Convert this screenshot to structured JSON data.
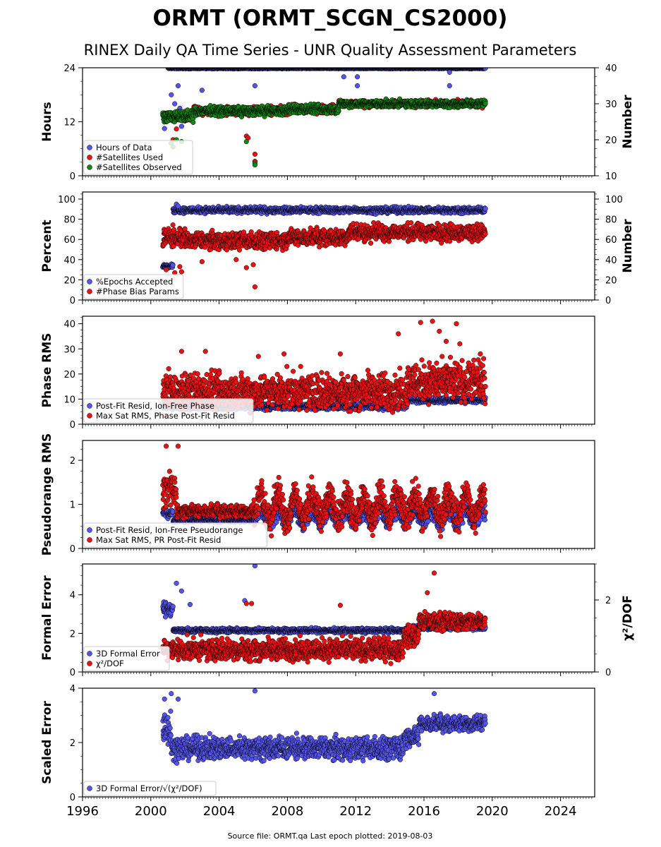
{
  "title": "ORMT (ORMT_SCGN_CS2000)",
  "subtitle": "RINEX Daily QA Time Series - UNR Quality Assessment Parameters",
  "footer": "Source file: ORMT.qa Last epoch plotted: 2019-08-03",
  "colors": {
    "blue": "#5555ee",
    "red": "#ee1111",
    "green": "#118811",
    "navy": "#1a1a5e",
    "edge": "#000000"
  },
  "chart_data": [
    {
      "type": "scatter",
      "panel": "hours-satellites",
      "xlim": [
        1996,
        2026
      ],
      "x_ticks": [
        "1996",
        "2000",
        "2004",
        "2008",
        "2012",
        "2016",
        "2020",
        "2024"
      ],
      "ylabel": "Hours",
      "ylim": [
        0,
        24
      ],
      "y_ticks": [
        "0",
        "12",
        "24"
      ],
      "ylabel_right": "Number",
      "ylim_right": [
        10,
        40
      ],
      "y_ticks_right": [
        "10",
        "20",
        "30",
        "40"
      ],
      "legend_position": "bottom-left",
      "series": [
        {
          "name": "Hours of Data",
          "axis": "left",
          "color": "blue",
          "segments": [
            [
              2001.0,
              2019.6,
              23.9,
              0.1
            ]
          ],
          "outliers": [
            [
              2000.8,
              10.5
            ],
            [
              2000.9,
              12.0
            ],
            [
              2001.2,
              18.0
            ],
            [
              2001.4,
              16.0
            ],
            [
              2001.6,
              20.0
            ],
            [
              2001.7,
              15.0
            ],
            [
              2001.8,
              11.0
            ],
            [
              2003.0,
              19.0
            ],
            [
              2006.1,
              20.0
            ],
            [
              2006.1,
              3.2
            ],
            [
              2011.3,
              22.0
            ],
            [
              2012.1,
              22.0
            ],
            [
              2012.1,
              20.0
            ],
            [
              2017.5,
              23.0
            ],
            [
              2017.5,
              20.0
            ]
          ]
        },
        {
          "name": "#Satellites Used",
          "axis": "right",
          "color": "red",
          "segments": [
            [
              2000.7,
              2002.5,
              26.5,
              1.0
            ],
            [
              2002.5,
              2008.0,
              28.0,
              1.0
            ],
            [
              2008.0,
              2011.0,
              28.5,
              1.0
            ],
            [
              2011.0,
              2019.6,
              30.0,
              0.8
            ]
          ],
          "outliers": [
            [
              2005.6,
              21.0
            ],
            [
              2005.7,
              20.5
            ],
            [
              2006.1,
              16.0
            ],
            [
              2006.1,
              14.0
            ],
            [
              2001.3,
              20.0
            ],
            [
              2001.5,
              23.0
            ]
          ]
        },
        {
          "name": "#Satellites Observed",
          "axis": "right",
          "color": "green",
          "segments": [
            [
              2000.7,
              2002.5,
              26.5,
              1.2
            ],
            [
              2002.5,
              2008.0,
              28.0,
              1.0
            ],
            [
              2008.0,
              2011.0,
              28.5,
              1.0
            ],
            [
              2011.0,
              2019.6,
              30.0,
              0.8
            ]
          ],
          "outliers": [
            [
              2001.2,
              19.0
            ],
            [
              2001.3,
              18.0
            ],
            [
              2001.5,
              20.0
            ],
            [
              2001.8,
              19.5
            ],
            [
              2005.6,
              19.5
            ],
            [
              2006.1,
              13.5
            ],
            [
              2006.1,
              13.0
            ]
          ]
        }
      ]
    },
    {
      "type": "scatter",
      "panel": "percent-phase-bias",
      "ylabel": "Percent",
      "ylim": [
        0,
        107
      ],
      "y_ticks": [
        "0",
        "20",
        "40",
        "60",
        "80",
        "100"
      ],
      "ylabel_right": "Number",
      "ylim_right": [
        0,
        107
      ],
      "y_ticks_right": [
        "0",
        "20",
        "40",
        "60",
        "80",
        "100"
      ],
      "legend_position": "bottom-left",
      "series": [
        {
          "name": "%Epochs Accepted",
          "axis": "left",
          "color": "blue",
          "segments": [
            [
              2000.7,
              2001.3,
              34.0,
              1.5
            ],
            [
              2001.3,
              2019.6,
              89.0,
              2.5
            ]
          ],
          "outliers": [
            [
              2001.5,
              95.0
            ],
            [
              2001.6,
              93.0
            ]
          ]
        },
        {
          "name": "#Phase Bias Params",
          "axis": "left",
          "color": "red",
          "segments": [
            [
              2000.7,
              2002.0,
              62.0,
              8.0
            ],
            [
              2002.0,
              2008.0,
              59.0,
              7.0
            ],
            [
              2008.0,
              2011.5,
              62.0,
              7.0
            ],
            [
              2011.5,
              2019.6,
              67.0,
              7.0
            ]
          ],
          "outliers": [
            [
              2000.9,
              30.0
            ],
            [
              2001.4,
              27.0
            ],
            [
              2001.7,
              33.0
            ],
            [
              2001.8,
              28.0
            ],
            [
              2003.0,
              38.0
            ],
            [
              2005.0,
              40.0
            ],
            [
              2005.6,
              32.0
            ],
            [
              2006.1,
              13.0
            ],
            [
              2006.0,
              35.0
            ]
          ]
        }
      ]
    },
    {
      "type": "scatter",
      "panel": "phase-rms",
      "ylabel": "Phase RMS",
      "ylim": [
        0,
        43
      ],
      "y_ticks": [
        "0",
        "10",
        "20",
        "30",
        "40"
      ],
      "legend_position": "bottom-left",
      "series": [
        {
          "name": "Post-Fit Resid, Ion-Free Phase",
          "color": "blue",
          "segments": [
            [
              2000.7,
              2015.0,
              7.0,
              1.0
            ],
            [
              2015.0,
              2019.6,
              9.5,
              0.8
            ]
          ]
        },
        {
          "name": "Max Sat RMS, Phase Post-Fit Resid",
          "color": "red",
          "segments": [
            [
              2000.7,
              2015.0,
              13.0,
              6.0
            ],
            [
              2015.0,
              2019.6,
              17.0,
              6.5
            ]
          ],
          "outliers": [
            [
              2001.8,
              29.0
            ],
            [
              2003.2,
              29.0
            ],
            [
              2006.3,
              27.0
            ],
            [
              2007.8,
              28.0
            ],
            [
              2011.1,
              28.0
            ],
            [
              2014.5,
              36.0
            ],
            [
              2015.8,
              40.5
            ],
            [
              2016.5,
              41.0
            ],
            [
              2016.9,
              37.0
            ],
            [
              2017.3,
              33.0
            ],
            [
              2017.9,
              40.0
            ],
            [
              2018.1,
              32.0
            ],
            [
              2019.3,
              28.0
            ]
          ]
        }
      ]
    },
    {
      "type": "scatter",
      "panel": "pseudorange-rms",
      "ylabel": "Pseudorange RMS",
      "ylim": [
        0,
        2.45
      ],
      "y_ticks": [
        "0",
        "1",
        "2"
      ],
      "legend_position": "bottom-left",
      "series": [
        {
          "name": "Post-Fit Resid, Ion-Free Pseudorange",
          "color": "blue",
          "segments": [
            [
              2000.7,
              2001.3,
              0.8,
              0.08
            ],
            [
              2001.3,
              2006.0,
              0.65,
              0.05
            ],
            [
              2006.0,
              2019.6,
              0.72,
              0.15
            ]
          ]
        },
        {
          "name": "Max Sat RMS, PR Post-Fit Resid",
          "color": "red",
          "segments": [
            [
              2000.7,
              2001.5,
              1.3,
              0.3
            ],
            [
              2001.5,
              2006.0,
              0.85,
              0.12
            ],
            [
              2006.0,
              2019.6,
              0.95,
              0.3
            ]
          ],
          "outliers": [
            [
              2000.9,
              2.32
            ],
            [
              2001.6,
              2.32
            ],
            [
              2001.1,
              1.75
            ]
          ]
        }
      ]
    },
    {
      "type": "scatter",
      "panel": "formal-error-chi2",
      "ylabel": "Formal Error",
      "ylim": [
        0,
        5.6
      ],
      "y_ticks": [
        "0",
        "2",
        "4"
      ],
      "ylabel_right": "χ²/DOF",
      "ylim_right": [
        0,
        3.0
      ],
      "y_ticks_right": [
        "0",
        "2"
      ],
      "legend_position": "bottom-left",
      "series": [
        {
          "name": "3D Formal Error",
          "axis": "left",
          "color": "blue",
          "segments": [
            [
              2000.7,
              2001.3,
              3.3,
              0.3
            ],
            [
              2001.3,
              2015.0,
              2.15,
              0.1
            ],
            [
              2015.0,
              2019.6,
              2.3,
              0.1
            ]
          ],
          "outliers": [
            [
              2001.5,
              4.6
            ],
            [
              2001.8,
              4.2
            ],
            [
              2002.3,
              3.5
            ],
            [
              2005.5,
              3.7
            ],
            [
              2006.1,
              5.5
            ]
          ]
        },
        {
          "name": "χ²/DOF",
          "axis": "right",
          "color": "red",
          "segments": [
            [
              2000.7,
              2014.8,
              0.62,
              0.25
            ],
            [
              2014.8,
              2015.7,
              1.0,
              0.25
            ],
            [
              2015.7,
              2019.6,
              1.4,
              0.2
            ]
          ],
          "outliers": [
            [
              2005.6,
              1.9
            ],
            [
              2005.9,
              1.9
            ],
            [
              2011.1,
              1.85
            ],
            [
              2016.6,
              2.75
            ],
            [
              2016.2,
              2.2
            ]
          ]
        }
      ]
    },
    {
      "type": "scatter",
      "panel": "scaled-error",
      "ylabel": "Scaled Error",
      "ylim": [
        0,
        4.0
      ],
      "y_ticks": [
        "0",
        "2",
        "4"
      ],
      "legend_position": "bottom-left",
      "series": [
        {
          "name": "3D Formal Error/√(χ²/DOF)",
          "color": "blue",
          "segments": [
            [
              2000.7,
              2001.2,
              2.6,
              0.6
            ],
            [
              2001.2,
              2014.8,
              1.8,
              0.35
            ],
            [
              2014.8,
              2015.7,
              2.2,
              0.3
            ],
            [
              2015.7,
              2019.6,
              2.7,
              0.25
            ]
          ],
          "outliers": [
            [
              2000.8,
              3.6
            ],
            [
              2001.2,
              3.8
            ],
            [
              2001.6,
              3.6
            ],
            [
              2006.1,
              3.9
            ],
            [
              2016.6,
              3.8
            ]
          ]
        }
      ]
    }
  ]
}
